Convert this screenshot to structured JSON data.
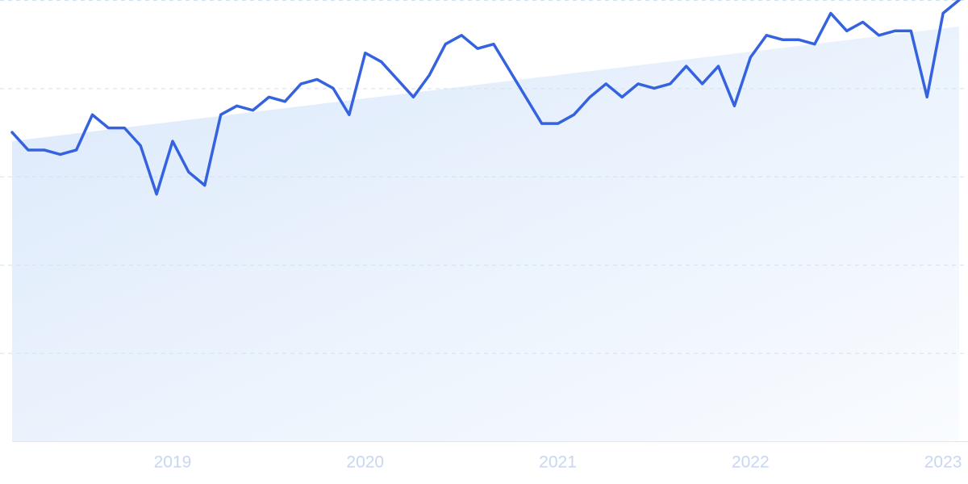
{
  "chart_data": {
    "type": "line",
    "categories": [
      null,
      null,
      null,
      null,
      null,
      null,
      null,
      null,
      null,
      null,
      "2019",
      null,
      null,
      null,
      null,
      null,
      null,
      null,
      null,
      null,
      null,
      null,
      "2020",
      null,
      null,
      null,
      null,
      null,
      null,
      null,
      null,
      null,
      null,
      null,
      "2021",
      null,
      null,
      null,
      null,
      null,
      null,
      null,
      null,
      null,
      null,
      null,
      "2022",
      null,
      null,
      null,
      null,
      null,
      null,
      null,
      null,
      null,
      null,
      null,
      "2023",
      null
    ],
    "series": [
      {
        "color": "#3563e0",
        "values": [
          70,
          66,
          66,
          65,
          66,
          74,
          71,
          71,
          67,
          56,
          68,
          61,
          58,
          74,
          76,
          75,
          78,
          77,
          81,
          82,
          80,
          74,
          88,
          86,
          82,
          78,
          83,
          90,
          92,
          89,
          90,
          84,
          78,
          72,
          72,
          74,
          78,
          81,
          78,
          81,
          80,
          81,
          85,
          81,
          85,
          76,
          87,
          92,
          91,
          91,
          90,
          97,
          93,
          95,
          92,
          93,
          93,
          78,
          97,
          100
        ]
      }
    ],
    "trend": [
      68,
      94
    ],
    "trend_color": "#dbe9fb",
    "ylim": [
      0,
      100
    ],
    "gridlines": [
      20,
      40,
      60,
      80,
      100
    ],
    "grid": true
  }
}
